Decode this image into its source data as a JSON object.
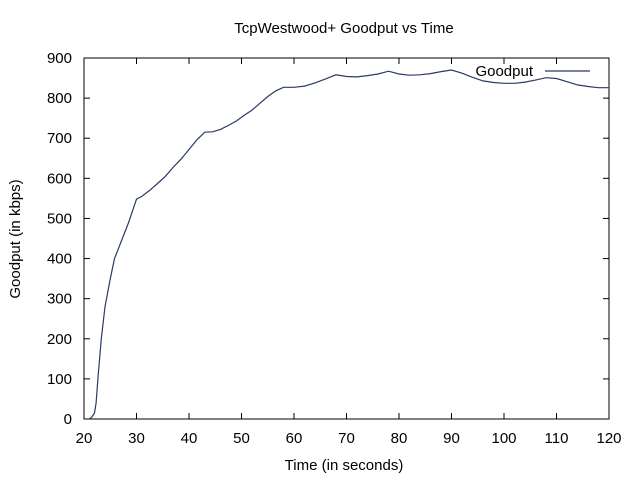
{
  "chart_data": {
    "type": "line",
    "title": "TcpWestwood+ Goodput vs Time",
    "xlabel": "Time (in seconds)",
    "ylabel": "Goodput (in kbps)",
    "xlim": [
      20,
      120
    ],
    "ylim": [
      0,
      900
    ],
    "xticks": [
      20,
      30,
      40,
      50,
      60,
      70,
      80,
      90,
      100,
      110,
      120
    ],
    "yticks": [
      0,
      100,
      200,
      300,
      400,
      500,
      600,
      700,
      800,
      900
    ],
    "legend_position": "top-right",
    "grid": false,
    "series": [
      {
        "name": "Goodput",
        "color": "#2b3a67",
        "x": [
          21.0,
          21.5,
          22.0,
          22.3,
          22.7,
          23.3,
          24.0,
          25.0,
          25.8,
          27.0,
          28.5,
          30.0,
          31.0,
          32.5,
          34.0,
          35.5,
          37.0,
          38.5,
          40.0,
          41.5,
          43.0,
          44.5,
          46.0,
          47.5,
          49.0,
          50.5,
          52.0,
          53.5,
          55.0,
          56.5,
          58.0,
          60.0,
          62.0,
          64.0,
          66.0,
          68.0,
          70.0,
          72.0,
          74.0,
          76.0,
          78.0,
          80.0,
          82.0,
          84.0,
          86.0,
          88.0,
          90.0,
          92.0,
          94.0,
          96.0,
          98.0,
          100.0,
          102.0,
          104.0,
          106.0,
          108.0,
          110.0,
          112.0,
          114.0,
          116.0,
          118.0,
          120.0
        ],
        "values": [
          0,
          5,
          15,
          40,
          110,
          200,
          280,
          350,
          400,
          440,
          490,
          548,
          555,
          570,
          587,
          605,
          628,
          648,
          672,
          696,
          715,
          716,
          722,
          732,
          743,
          757,
          770,
          787,
          804,
          818,
          827,
          827,
          830,
          838,
          848,
          858,
          854,
          853,
          856,
          860,
          867,
          860,
          857,
          858,
          861,
          866,
          870,
          862,
          852,
          843,
          839,
          837,
          837,
          840,
          845,
          851,
          849,
          841,
          833,
          829,
          826,
          826
        ]
      }
    ]
  }
}
